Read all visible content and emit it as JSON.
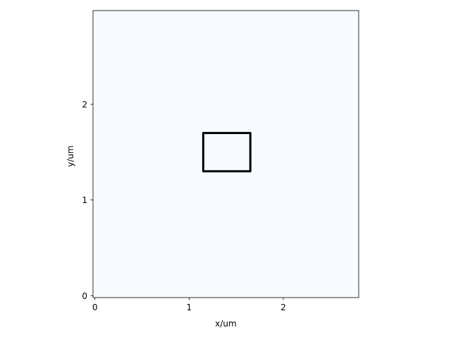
{
  "chart_data": {
    "type": "scatter",
    "title": "",
    "xlabel": "x/um",
    "ylabel": "y/um",
    "xlim": [
      -0.02,
      2.8
    ],
    "ylim": [
      -0.02,
      2.98
    ],
    "xticks": [
      {
        "value": 0,
        "label": "0"
      },
      {
        "value": 1,
        "label": "1"
      },
      {
        "value": 2,
        "label": "2"
      }
    ],
    "yticks": [
      {
        "value": 0,
        "label": "0"
      },
      {
        "value": 1,
        "label": "1"
      },
      {
        "value": 2,
        "label": "2"
      }
    ],
    "grid": false,
    "legend": false,
    "background_color": "#f7fbff",
    "shapes": [
      {
        "kind": "rectangle",
        "x0": 1.15,
        "x1": 1.65,
        "y0": 1.3,
        "y1": 1.7,
        "edge_color": "#000000"
      }
    ]
  }
}
